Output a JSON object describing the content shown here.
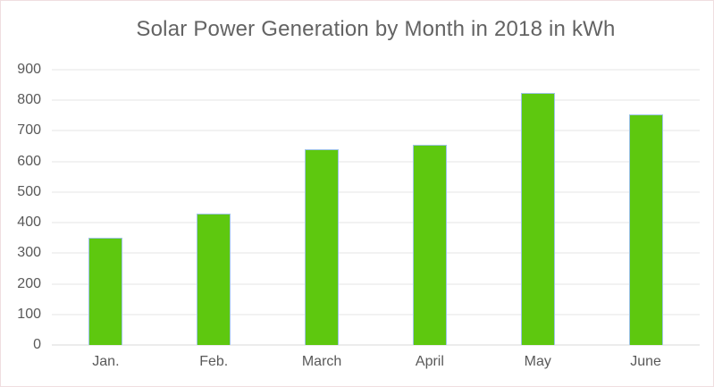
{
  "chart_data": {
    "type": "bar",
    "title": "Solar Power Generation by Month in 2018 in kWh",
    "categories": [
      "Jan.",
      "Feb.",
      "March",
      "April",
      "May",
      "June"
    ],
    "values": [
      350,
      430,
      640,
      655,
      825,
      755
    ],
    "xlabel": "",
    "ylabel": "",
    "ylim": [
      0,
      900
    ],
    "yticks": [
      0,
      100,
      200,
      300,
      400,
      500,
      600,
      700,
      800,
      900
    ],
    "grid": "horizontal",
    "legend": "none",
    "colors": {
      "bar": "#5EC80F",
      "bar_border": "#9DC3E6",
      "grid": "#E6E6E6",
      "axis_line": "#D9D9D9",
      "text": "#595959",
      "title_text": "#636363",
      "frame": "#F0DEE0",
      "background": "#FFFFFF"
    }
  }
}
